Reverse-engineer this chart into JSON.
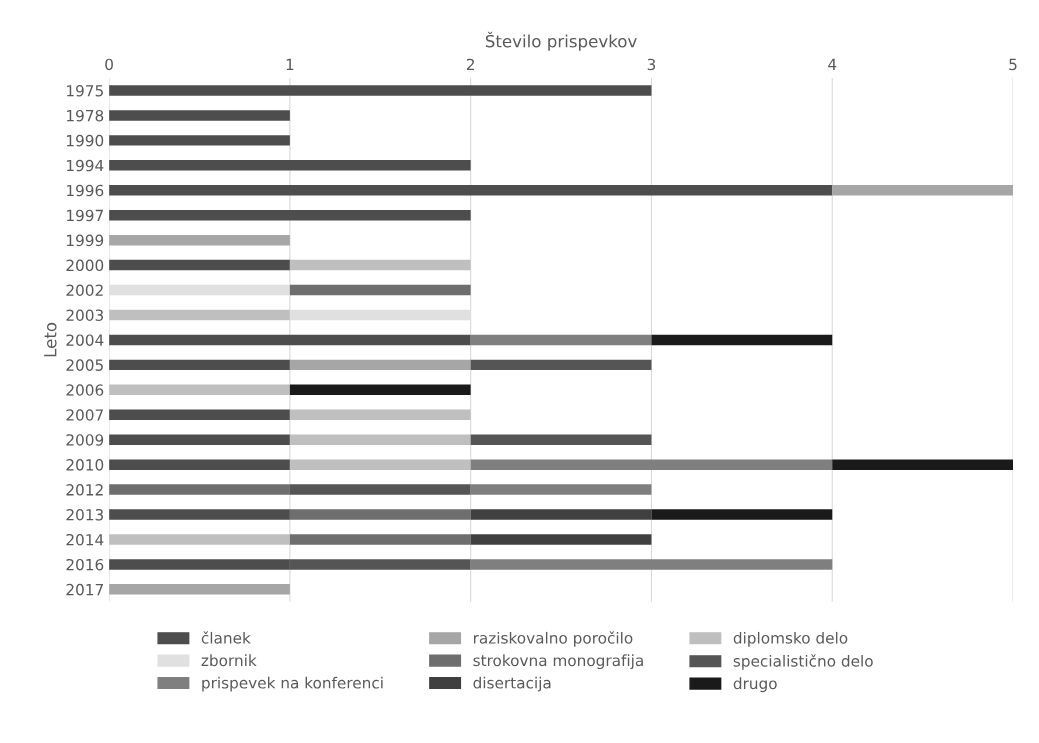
{
  "chart_data": {
    "type": "bar",
    "orientation": "horizontal",
    "stacked": true,
    "xlabel": "Število prispevkov",
    "ylabel": "Leto",
    "categories": [
      "1975",
      "1978",
      "1990",
      "1994",
      "1996",
      "1997",
      "1999",
      "2000",
      "2002",
      "2003",
      "2004",
      "2005",
      "2006",
      "2007",
      "2009",
      "2010",
      "2012",
      "2013",
      "2014",
      "2016",
      "2017"
    ],
    "series": [
      {
        "name": "članek",
        "color": "#4d4d4d",
        "values": [
          3,
          1,
          1,
          2,
          4,
          2,
          null,
          1,
          null,
          null,
          2,
          1,
          null,
          1,
          1,
          1,
          null,
          1,
          null,
          1,
          null
        ]
      },
      {
        "name": "raziskovalno poročilo",
        "color": "#a6a6a6",
        "values": [
          null,
          null,
          null,
          null,
          1,
          null,
          1,
          null,
          null,
          null,
          null,
          1,
          null,
          null,
          null,
          null,
          null,
          null,
          null,
          null,
          1
        ]
      },
      {
        "name": "diplomsko delo",
        "color": "#bfbfbf",
        "values": [
          null,
          null,
          null,
          null,
          null,
          null,
          null,
          1,
          null,
          1,
          null,
          null,
          1,
          1,
          1,
          1,
          null,
          null,
          1,
          null,
          null
        ]
      },
      {
        "name": "zbornik",
        "color": "#e0e0e0",
        "values": [
          null,
          null,
          null,
          null,
          null,
          null,
          null,
          null,
          1,
          1,
          null,
          null,
          null,
          null,
          null,
          null,
          null,
          null,
          null,
          null,
          null
        ]
      },
      {
        "name": "strokovna monografija",
        "color": "#6e6e6e",
        "values": [
          null,
          null,
          null,
          null,
          null,
          null,
          null,
          null,
          1,
          null,
          null,
          null,
          null,
          null,
          null,
          null,
          1,
          1,
          1,
          null,
          null
        ]
      },
      {
        "name": "specialistično delo",
        "color": "#555555",
        "values": [
          null,
          null,
          null,
          null,
          null,
          null,
          null,
          null,
          null,
          null,
          null,
          1,
          null,
          null,
          1,
          null,
          1,
          null,
          null,
          1,
          null
        ]
      },
      {
        "name": "prispevek na konferenci",
        "color": "#7f7f7f",
        "values": [
          null,
          null,
          null,
          null,
          null,
          null,
          null,
          null,
          null,
          null,
          1,
          null,
          null,
          null,
          null,
          2,
          1,
          null,
          null,
          2,
          null
        ]
      },
      {
        "name": "disertacija",
        "color": "#404040",
        "values": [
          null,
          null,
          null,
          null,
          null,
          null,
          null,
          null,
          null,
          null,
          null,
          null,
          null,
          null,
          null,
          null,
          null,
          1,
          1,
          null,
          null
        ]
      },
      {
        "name": "drugo",
        "color": "#1a1a1a",
        "values": [
          null,
          null,
          null,
          null,
          null,
          null,
          null,
          null,
          null,
          null,
          1,
          null,
          1,
          null,
          null,
          1,
          null,
          1,
          null,
          null,
          null
        ]
      }
    ],
    "xlim": [
      0,
      5
    ],
    "xticks": [
      0,
      1,
      2,
      3,
      4,
      5
    ],
    "grid": "x",
    "legend": "bottom"
  }
}
